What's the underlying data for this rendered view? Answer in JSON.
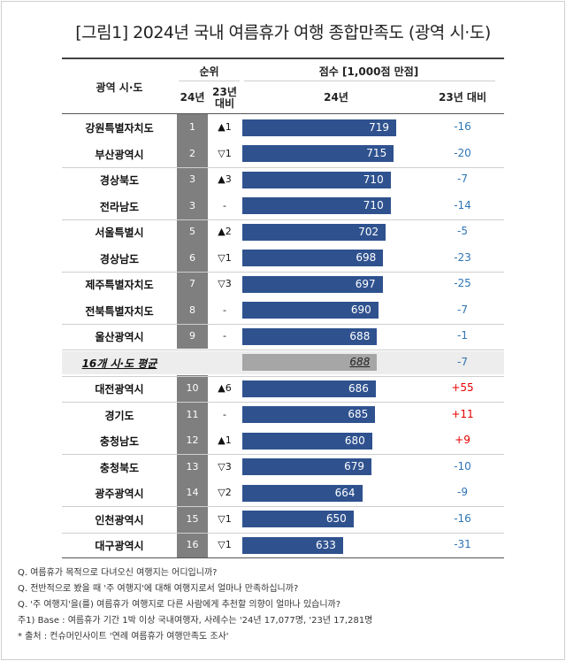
{
  "title": "[그림1] 2024년 국내 여름휴가 여행 종합만족도 (광역 시·도)",
  "chart_data": {
    "type": "bar",
    "title": "[그림1] 2024년 국내 여름휴가 여행 종합만족도 (광역 시·도)",
    "headers": {
      "region": "광역 시·도",
      "rank_group": "순위",
      "rank_2024": "24년",
      "rank_change": "23년 대비",
      "score_group": "점수 [1,000점 만점]",
      "score_2024": "24년",
      "score_change": "23년 대비"
    },
    "xlim": [
      0,
      1000
    ],
    "rows": [
      {
        "region": "강원특별자치도",
        "rank": "1",
        "rank_change": "▲1",
        "score": 719,
        "score_label": "719",
        "diff": "-16",
        "diff_color": "#2e75b6"
      },
      {
        "region": "부산광역시",
        "rank": "2",
        "rank_change": "▽1",
        "score": 715,
        "score_label": "715",
        "diff": "-20",
        "diff_color": "#2e75b6"
      },
      {
        "region": "경상북도",
        "rank": "3",
        "rank_change": "▲3",
        "score": 710,
        "score_label": "710",
        "diff": "-7",
        "diff_color": "#2e75b6"
      },
      {
        "region": "전라남도",
        "rank": "3",
        "rank_change": "-",
        "score": 710,
        "score_label": "710",
        "diff": "-14",
        "diff_color": "#2e75b6"
      },
      {
        "region": "서울특별시",
        "rank": "5",
        "rank_change": "▲2",
        "score": 702,
        "score_label": "702",
        "diff": "-5",
        "diff_color": "#2e75b6"
      },
      {
        "region": "경상남도",
        "rank": "6",
        "rank_change": "▽1",
        "score": 698,
        "score_label": "698",
        "diff": "-23",
        "diff_color": "#2e75b6"
      },
      {
        "region": "제주특별자치도",
        "rank": "7",
        "rank_change": "▽3",
        "score": 697,
        "score_label": "697",
        "diff": "-25",
        "diff_color": "#2e75b6"
      },
      {
        "region": "전북특별자치도",
        "rank": "8",
        "rank_change": "-",
        "score": 690,
        "score_label": "690",
        "diff": "-7",
        "diff_color": "#2e75b6"
      },
      {
        "region": "울산광역시",
        "rank": "9",
        "rank_change": "-",
        "score": 688,
        "score_label": "688",
        "diff": "-1",
        "diff_color": "#2e75b6"
      },
      {
        "region": "16개 시·도 평균",
        "rank": "",
        "rank_change": "",
        "score": 688,
        "score_label": "688",
        "diff": "-7",
        "diff_color": "#2e75b6",
        "is_average": true
      },
      {
        "region": "대전광역시",
        "rank": "10",
        "rank_change": "▲6",
        "score": 686,
        "score_label": "686",
        "diff": "+55",
        "diff_color": "#e60000"
      },
      {
        "region": "경기도",
        "rank": "11",
        "rank_change": "-",
        "score": 685,
        "score_label": "685",
        "diff": "+11",
        "diff_color": "#e60000"
      },
      {
        "region": "충청남도",
        "rank": "12",
        "rank_change": "▲1",
        "score": 680,
        "score_label": "680",
        "diff": "+9",
        "diff_color": "#e60000"
      },
      {
        "region": "충청북도",
        "rank": "13",
        "rank_change": "▽3",
        "score": 679,
        "score_label": "679",
        "diff": "-10",
        "diff_color": "#2e75b6"
      },
      {
        "region": "광주광역시",
        "rank": "14",
        "rank_change": "▽2",
        "score": 664,
        "score_label": "664",
        "diff": "-9",
        "diff_color": "#2e75b6"
      },
      {
        "region": "인천광역시",
        "rank": "15",
        "rank_change": "▽1",
        "score": 650,
        "score_label": "650",
        "diff": "-16",
        "diff_color": "#2e75b6"
      },
      {
        "region": "대구광역시",
        "rank": "16",
        "rank_change": "▽1",
        "score": 633,
        "score_label": "633",
        "diff": "-31",
        "diff_color": "#2e75b6"
      }
    ],
    "colors": {
      "bar": "#2f528f",
      "average_bar": "#a6a6a6",
      "rank_cell": "#7f7f7f"
    }
  },
  "notes": [
    "Q. 여름휴가 목적으로 다녀오신 여행지는 어디입니까?",
    "Q. 전반적으로 봤을 때 '주 여행지'에 대해 여행지로서 얼마나 만족하십니까?",
    "Q. '주 여행지'을(를) 여름휴가 여행지로 다른 사람에게 추천할 의향이 얼마나 있습니까?",
    "주1) Base : 여름휴가 기간 1박 이상 국내여행자, 사례수는 '24년 17,077명, '23년 17,281명",
    "* 출처 : 컨슈머인사이트 '연례 여름휴가 여행만족도 조사'"
  ]
}
